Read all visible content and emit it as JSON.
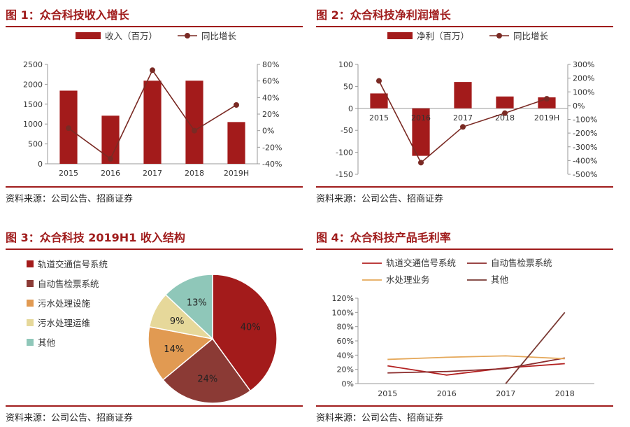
{
  "sources": {
    "text": "资料来源：公司公告、招商证券"
  },
  "chart_data": [
    {
      "type": "bar",
      "title": "图 1：众合科技收入增长",
      "categories": [
        "2015",
        "2016",
        "2017",
        "2018",
        "2019H"
      ],
      "series": [
        {
          "name": "收入（百万）",
          "type": "bar",
          "axis": "left",
          "color": "#a31b1b",
          "values": [
            1840,
            1210,
            2090,
            2090,
            1050
          ]
        },
        {
          "name": "同比增长",
          "type": "line",
          "axis": "right",
          "color": "#7a2a24",
          "values": [
            3,
            -34,
            73,
            0,
            31
          ]
        }
      ],
      "ylim": [
        0,
        2500
      ],
      "yticks": [
        0,
        500,
        1000,
        1500,
        2000,
        2500
      ],
      "y2lim": [
        -40,
        80
      ],
      "y2ticks": [
        -40,
        -20,
        0,
        20,
        40,
        60,
        80
      ],
      "y2unit": "%",
      "legend": "top"
    },
    {
      "type": "bar",
      "title": "图 2：众合科技净利润增长",
      "categories": [
        "2015",
        "2016",
        "2017",
        "2018",
        "2019H"
      ],
      "series": [
        {
          "name": "净利（百万）",
          "type": "bar",
          "axis": "left",
          "color": "#a31b1b",
          "values": [
            34,
            -108,
            60,
            27,
            25
          ]
        },
        {
          "name": "同比增长",
          "type": "line",
          "axis": "right",
          "color": "#7a2a24",
          "values": [
            180,
            -415,
            -155,
            -55,
            50
          ]
        }
      ],
      "ylim": [
        -150,
        100
      ],
      "yticks": [
        -150,
        -100,
        -50,
        0,
        50,
        100
      ],
      "y2lim": [
        -500,
        300
      ],
      "y2ticks": [
        -500,
        -400,
        -300,
        -200,
        -100,
        0,
        100,
        200,
        300
      ],
      "y2unit": "%",
      "legend": "top"
    },
    {
      "type": "pie",
      "title": "图 3：众合科技 2019H1 收入结构",
      "labels": [
        "轨道交通信号系统",
        "自动售检票系统",
        "污水处理设施",
        "污水处理运维",
        "其他"
      ],
      "values": [
        40,
        24,
        14,
        9,
        13
      ],
      "display": [
        "40%",
        "24%",
        "14%",
        "9%",
        "13%"
      ],
      "colors": [
        "#a31b1b",
        "#8b3a35",
        "#e19a52",
        "#e6d89a",
        "#8fc7b9"
      ],
      "legend": "left"
    },
    {
      "type": "line",
      "title": "图 4：众合科技产品毛利率",
      "categories": [
        "2015",
        "2016",
        "2017",
        "2018"
      ],
      "series": [
        {
          "name": "轨道交通信号系统",
          "color": "#b32222",
          "values": [
            25,
            12,
            22,
            28
          ]
        },
        {
          "name": "自动售检票系统",
          "color": "#8b2c2c",
          "values": [
            15,
            17,
            21,
            36
          ]
        },
        {
          "name": "水处理业务",
          "color": "#e5a85a",
          "values": [
            34,
            37,
            39,
            35
          ]
        },
        {
          "name": "其他",
          "color": "#7a3a34",
          "values": [
            null,
            null,
            0,
            100
          ]
        }
      ],
      "ylim": [
        0,
        120
      ],
      "yticks": [
        0,
        20,
        40,
        60,
        80,
        100,
        120
      ],
      "yunit": "%",
      "legend": "top"
    }
  ]
}
